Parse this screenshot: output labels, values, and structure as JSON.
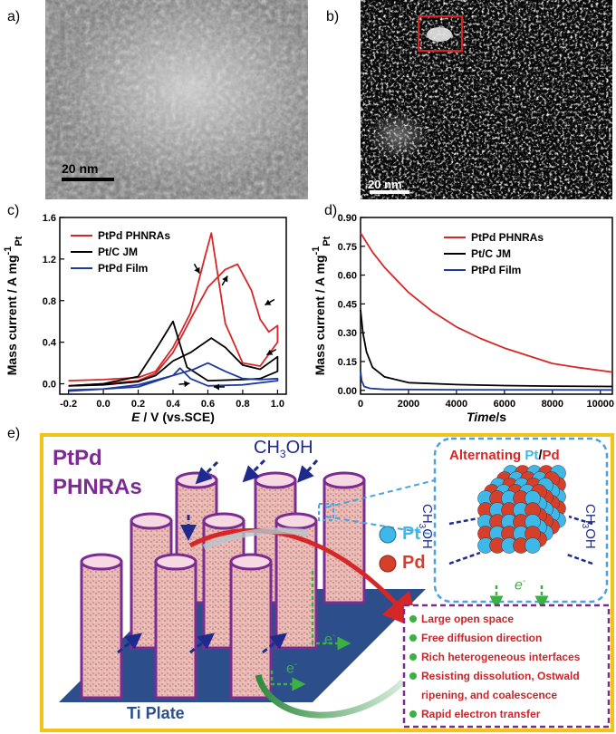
{
  "panels": {
    "a": {
      "label": "a)",
      "scalebar": "20 nm"
    },
    "b": {
      "label": "b)",
      "scalebar": "20 nm"
    },
    "c": {
      "label": "c)"
    },
    "d": {
      "label": "d)"
    },
    "e": {
      "label": "e)"
    }
  },
  "chart_data": [
    {
      "type": "line",
      "panel": "c",
      "xlabel_italic": "E",
      "xlabel_rest": " / V (vs.SCE)",
      "ylabel": "Mass current / A mg",
      "ylabel_sup": "-1",
      "ylabel_sub": "Pt",
      "xlim": [
        -0.25,
        1.05
      ],
      "ylim": [
        -0.1,
        1.6
      ],
      "xticks": [
        "-0.2",
        "0.0",
        "0.2",
        "0.4",
        "0.6",
        "0.8",
        "1.0"
      ],
      "xtick_values": [
        -0.2,
        0.0,
        0.2,
        0.4,
        0.6,
        0.8,
        1.0
      ],
      "yticks": [
        "0.0",
        "0.4",
        "0.8",
        "1.2",
        "1.6"
      ],
      "ytick_values": [
        0.0,
        0.4,
        0.8,
        1.2,
        1.6
      ],
      "legend_position": "top-left",
      "series": [
        {
          "name": "PtPd PHNRAs",
          "color": "#d62728",
          "forward": [
            [
              -0.2,
              -0.02
            ],
            [
              0.0,
              0.0
            ],
            [
              0.2,
              0.03
            ],
            [
              0.3,
              0.1
            ],
            [
              0.4,
              0.3
            ],
            [
              0.5,
              0.62
            ],
            [
              0.6,
              0.93
            ],
            [
              0.7,
              1.1
            ],
            [
              0.77,
              1.15
            ],
            [
              0.85,
              0.9
            ],
            [
              0.9,
              0.62
            ],
            [
              0.95,
              0.5
            ],
            [
              1.0,
              0.56
            ]
          ],
          "reverse": [
            [
              1.0,
              0.4
            ],
            [
              0.9,
              0.17
            ],
            [
              0.8,
              0.2
            ],
            [
              0.7,
              0.58
            ],
            [
              0.62,
              1.45
            ],
            [
              0.58,
              1.2
            ],
            [
              0.5,
              0.68
            ],
            [
              0.4,
              0.35
            ],
            [
              0.3,
              0.12
            ],
            [
              0.2,
              0.06
            ],
            [
              0.0,
              0.04
            ],
            [
              -0.2,
              0.03
            ]
          ]
        },
        {
          "name": "Pt/C JM",
          "color": "#000000",
          "forward": [
            [
              -0.2,
              -0.02
            ],
            [
              0.0,
              -0.01
            ],
            [
              0.2,
              0.02
            ],
            [
              0.3,
              0.08
            ],
            [
              0.4,
              0.22
            ],
            [
              0.5,
              0.3
            ],
            [
              0.62,
              0.44
            ],
            [
              0.7,
              0.35
            ],
            [
              0.8,
              0.18
            ],
            [
              0.9,
              0.14
            ],
            [
              1.0,
              0.26
            ]
          ],
          "reverse": [
            [
              1.0,
              0.12
            ],
            [
              0.9,
              0.05
            ],
            [
              0.8,
              0.04
            ],
            [
              0.6,
              0.03
            ],
            [
              0.48,
              0.16
            ],
            [
              0.4,
              0.6
            ],
            [
              0.32,
              0.38
            ],
            [
              0.2,
              0.07
            ],
            [
              0.0,
              0.0
            ],
            [
              -0.2,
              -0.02
            ]
          ]
        },
        {
          "name": "PtPd Film",
          "color": "#1f3a9e",
          "forward": [
            [
              -0.2,
              -0.07
            ],
            [
              0.0,
              -0.05
            ],
            [
              0.2,
              -0.01
            ],
            [
              0.4,
              0.08
            ],
            [
              0.52,
              0.14
            ],
            [
              0.6,
              0.2
            ],
            [
              0.7,
              0.12
            ],
            [
              0.8,
              0.05
            ],
            [
              0.9,
              0.04
            ],
            [
              1.0,
              0.05
            ]
          ],
          "reverse": [
            [
              1.0,
              0.03
            ],
            [
              0.8,
              -0.01
            ],
            [
              0.6,
              -0.02
            ],
            [
              0.5,
              0.05
            ],
            [
              0.44,
              0.15
            ],
            [
              0.4,
              0.08
            ],
            [
              0.2,
              -0.03
            ],
            [
              0.0,
              -0.05
            ],
            [
              -0.2,
              -0.06
            ]
          ]
        }
      ]
    },
    {
      "type": "line",
      "panel": "d",
      "xlabel_italic": "Time",
      "xlabel_rest": "/s",
      "ylabel": "Mass current / A mg",
      "ylabel_sup": "-1",
      "ylabel_sub": "Pt",
      "xlim": [
        0,
        10500
      ],
      "ylim": [
        -0.02,
        0.9
      ],
      "xticks": [
        "0",
        "2000",
        "4000",
        "6000",
        "8000",
        "10000"
      ],
      "xtick_values": [
        0,
        2000,
        4000,
        6000,
        8000,
        10000
      ],
      "yticks": [
        "0.00",
        "0.15",
        "0.30",
        "0.45",
        "0.60",
        "0.75",
        "0.90"
      ],
      "ytick_values": [
        0.0,
        0.15,
        0.3,
        0.45,
        0.6,
        0.75,
        0.9
      ],
      "legend_position": "top-right",
      "series": [
        {
          "name": "PtPd PHNRAs",
          "color": "#d62728",
          "points": [
            [
              0,
              0.82
            ],
            [
              500,
              0.72
            ],
            [
              1000,
              0.64
            ],
            [
              2000,
              0.51
            ],
            [
              3000,
              0.41
            ],
            [
              4000,
              0.33
            ],
            [
              5000,
              0.27
            ],
            [
              6000,
              0.22
            ],
            [
              7000,
              0.18
            ],
            [
              8000,
              0.14
            ],
            [
              9000,
              0.12
            ],
            [
              10500,
              0.095
            ]
          ]
        },
        {
          "name": "Pt/C JM",
          "color": "#000000",
          "points": [
            [
              0,
              0.42
            ],
            [
              100,
              0.3
            ],
            [
              250,
              0.2
            ],
            [
              500,
              0.12
            ],
            [
              1000,
              0.07
            ],
            [
              2000,
              0.04
            ],
            [
              4000,
              0.03
            ],
            [
              6000,
              0.025
            ],
            [
              8000,
              0.022
            ],
            [
              10500,
              0.02
            ]
          ]
        },
        {
          "name": "PtPd Film",
          "color": "#1f3a9e",
          "points": [
            [
              0,
              0.1
            ],
            [
              50,
              0.05
            ],
            [
              150,
              0.02
            ],
            [
              400,
              0.01
            ],
            [
              1000,
              0.005
            ],
            [
              4000,
              0.003
            ],
            [
              10500,
              0.002
            ]
          ]
        }
      ]
    }
  ],
  "schematic": {
    "title_line1": "PtPd",
    "title_line2": "PHNRAs",
    "methanol": "CH",
    "methanol_sub": "3",
    "methanol_end": "OH",
    "plate_label": "Ti Plate",
    "electron": "e",
    "electron_sup": "-",
    "inset_title_prefix": "Alternating ",
    "inset_title_pt": "Pt",
    "inset_title_slash": "/",
    "inset_title_pd": "Pd",
    "pt_label": "Pt",
    "pd_label": "Pd",
    "colors": {
      "frame": "#f2c418",
      "purple": "#7b2c90",
      "navy": "#1e2a8c",
      "pt": "#3db8e8",
      "pd": "#d6402a",
      "green": "#3cb043",
      "inset_border": "#4aa3df"
    },
    "advantages": [
      "Large open space",
      "Free diffusion direction",
      "Rich heterogeneous interfaces",
      "Resisting dissolution, Ostwald",
      "ripening, and coalescence",
      "Rapid electron transfer"
    ]
  }
}
